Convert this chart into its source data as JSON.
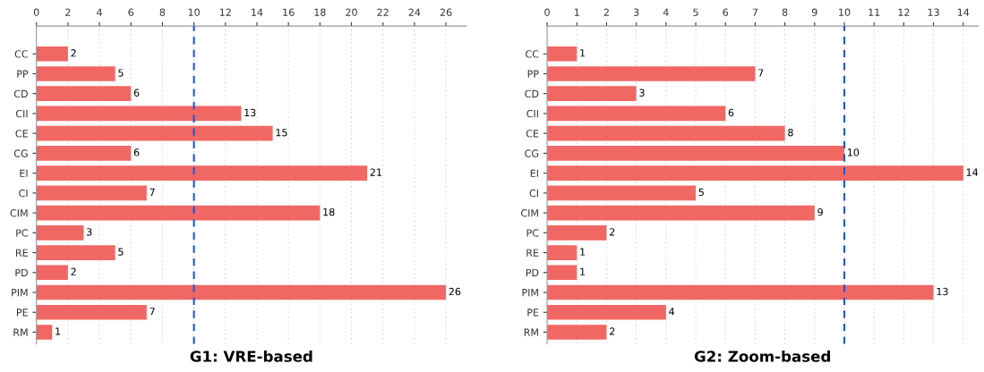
{
  "chart_data": [
    {
      "type": "bar",
      "orientation": "horizontal",
      "title": "G1: VRE-based",
      "categories": [
        "CC",
        "PP",
        "CD",
        "CII",
        "CE",
        "CG",
        "EI",
        "CI",
        "CIM",
        "PC",
        "RE",
        "PD",
        "PIM",
        "PE",
        "RM"
      ],
      "values": [
        2,
        5,
        6,
        13,
        15,
        6,
        21,
        7,
        18,
        3,
        5,
        2,
        26,
        7,
        1
      ],
      "color": "#f16763",
      "data_labels": true,
      "xlim": [
        0,
        27.3
      ],
      "xticks": [
        0,
        2,
        4,
        6,
        8,
        10,
        12,
        14,
        16,
        18,
        20,
        22,
        24,
        26
      ],
      "grid": "x",
      "ref_lines": [
        {
          "axis": "x",
          "value": 10,
          "color": "#1f55d6",
          "line_style": "dashed"
        }
      ]
    },
    {
      "type": "bar",
      "orientation": "horizontal",
      "title": "G2: Zoom-based",
      "categories": [
        "CC",
        "PP",
        "CD",
        "CII",
        "CE",
        "CG",
        "EI",
        "CI",
        "CIM",
        "PC",
        "RE",
        "PD",
        "PIM",
        "PE",
        "RM"
      ],
      "values": [
        1,
        7,
        3,
        6,
        8,
        10,
        14,
        5,
        9,
        2,
        1,
        1,
        13,
        4,
        2
      ],
      "color": "#f16763",
      "data_labels": true,
      "xlim": [
        0,
        14.5
      ],
      "xticks": [
        0,
        1,
        2,
        3,
        4,
        5,
        6,
        7,
        8,
        9,
        10,
        11,
        12,
        13,
        14
      ],
      "grid": "x",
      "ref_lines": [
        {
          "axis": "x",
          "value": 10,
          "color": "#1f55d6",
          "line_style": "dashed"
        }
      ]
    }
  ]
}
